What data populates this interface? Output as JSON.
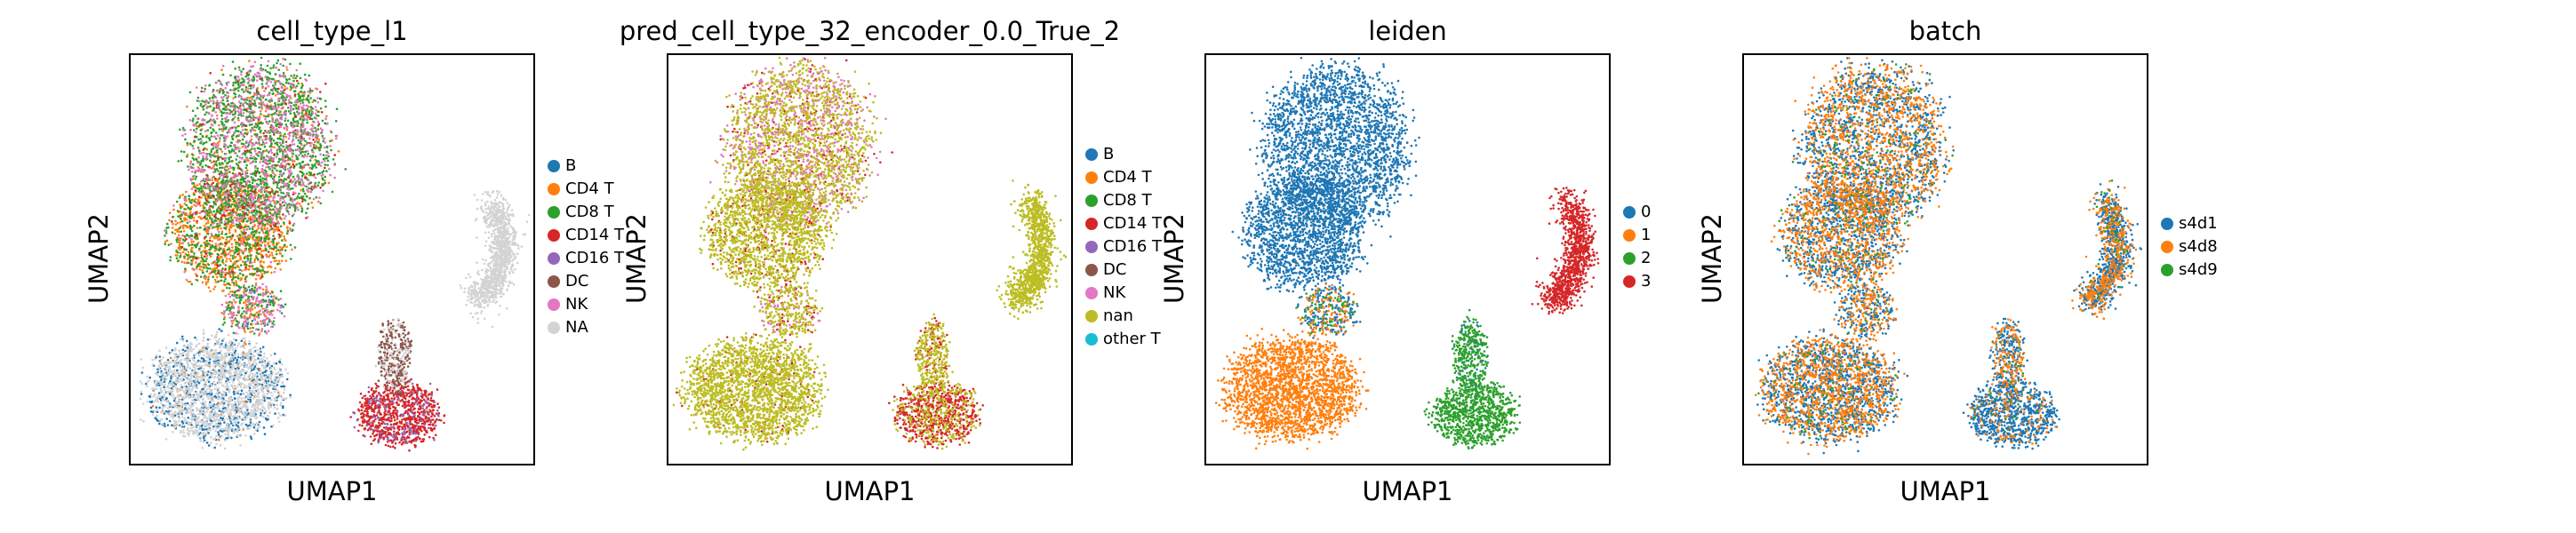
{
  "chart_data": [
    {
      "type": "scatter",
      "title": "cell_type_l1",
      "xlabel": "UMAP1",
      "ylabel": "UMAP2",
      "legend_position": "right",
      "categories": [
        "B",
        "CD4 T",
        "CD8 T",
        "CD14 T",
        "CD16 T",
        "DC",
        "NK",
        "NA"
      ],
      "colors": [
        "#1f77b4",
        "#ff7f0e",
        "#2ca02c",
        "#d62728",
        "#9467bd",
        "#8c564b",
        "#e377c2",
        "#d3d3d3"
      ],
      "clusters": [
        {
          "region": "top_upper",
          "mix": {
            "CD8 T": 0.55,
            "CD4 T": 0.1,
            "NK": 0.3,
            "CD14 T": 0.05
          }
        },
        {
          "region": "top_lower",
          "mix": {
            "CD4 T": 0.55,
            "CD8 T": 0.35,
            "CD14 T": 0.05,
            "NK": 0.05
          }
        },
        {
          "region": "bridge",
          "mix": {
            "CD8 T": 0.4,
            "NK": 0.3,
            "CD4 T": 0.2,
            "B": 0.1
          }
        },
        {
          "region": "right_arc",
          "mix": {
            "NA": 1.0
          }
        },
        {
          "region": "bottom_left",
          "mix": {
            "NA": 0.65,
            "B": 0.33,
            "CD4 T": 0.02
          }
        },
        {
          "region": "bottom_right",
          "mix": {
            "CD14 T": 0.85,
            "CD16 T": 0.15
          }
        },
        {
          "region": "br_stem",
          "mix": {
            "DC": 0.7,
            "NA": 0.3
          }
        }
      ]
    },
    {
      "type": "scatter",
      "title": "pred_cell_type_32_encoder_0.0_True_2",
      "xlabel": "UMAP1",
      "ylabel": "UMAP2",
      "legend_position": "right",
      "categories": [
        "B",
        "CD4 T",
        "CD8 T",
        "CD14 T",
        "CD16 T",
        "DC",
        "NK",
        "nan",
        "other T"
      ],
      "colors": [
        "#1f77b4",
        "#ff7f0e",
        "#2ca02c",
        "#d62728",
        "#9467bd",
        "#8c564b",
        "#e377c2",
        "#bcbd22",
        "#17becf"
      ],
      "clusters": [
        {
          "region": "top_upper",
          "mix": {
            "nan": 0.6,
            "NK": 0.3,
            "CD14 T": 0.1
          }
        },
        {
          "region": "top_lower",
          "mix": {
            "nan": 0.88,
            "CD14 T": 0.12
          }
        },
        {
          "region": "bridge",
          "mix": {
            "nan": 0.7,
            "NK": 0.15,
            "CD14 T": 0.15
          }
        },
        {
          "region": "right_arc",
          "mix": {
            "nan": 1.0
          }
        },
        {
          "region": "bottom_left",
          "mix": {
            "nan": 0.95,
            "CD14 T": 0.05
          }
        },
        {
          "region": "bottom_right",
          "mix": {
            "CD14 T": 0.65,
            "nan": 0.35
          }
        },
        {
          "region": "br_stem",
          "mix": {
            "nan": 0.8,
            "CD14 T": 0.2
          }
        }
      ]
    },
    {
      "type": "scatter",
      "title": "leiden",
      "xlabel": "UMAP1",
      "ylabel": "UMAP2",
      "legend_position": "right",
      "categories": [
        "0",
        "1",
        "2",
        "3"
      ],
      "colors": [
        "#1f77b4",
        "#ff7f0e",
        "#2ca02c",
        "#d62728"
      ],
      "clusters": [
        {
          "region": "top_upper",
          "mix": {
            "0": 1.0
          }
        },
        {
          "region": "top_lower",
          "mix": {
            "0": 1.0
          }
        },
        {
          "region": "bridge",
          "mix": {
            "0": 0.5,
            "1": 0.3,
            "2": 0.2
          }
        },
        {
          "region": "right_arc",
          "mix": {
            "3": 1.0
          }
        },
        {
          "region": "bottom_left",
          "mix": {
            "1": 1.0
          }
        },
        {
          "region": "bottom_right",
          "mix": {
            "2": 1.0
          }
        },
        {
          "region": "br_stem",
          "mix": {
            "2": 0.85,
            "0": 0.15
          }
        }
      ]
    },
    {
      "type": "scatter",
      "title": "batch",
      "xlabel": "UMAP1",
      "ylabel": "UMAP2",
      "legend_position": "right",
      "categories": [
        "s4d1",
        "s4d8",
        "s4d9"
      ],
      "colors": [
        "#1f77b4",
        "#ff7f0e",
        "#2ca02c"
      ],
      "clusters": [
        {
          "region": "top_upper",
          "mix": {
            "s4d1": 0.48,
            "s4d8": 0.48,
            "s4d9": 0.04
          }
        },
        {
          "region": "top_lower",
          "mix": {
            "s4d1": 0.48,
            "s4d8": 0.48,
            "s4d9": 0.04
          }
        },
        {
          "region": "bridge",
          "mix": {
            "s4d1": 0.5,
            "s4d8": 0.45,
            "s4d9": 0.05
          }
        },
        {
          "region": "right_arc",
          "mix": {
            "s4d1": 0.55,
            "s4d8": 0.43,
            "s4d9": 0.02
          }
        },
        {
          "region": "bottom_left",
          "mix": {
            "s4d1": 0.5,
            "s4d8": 0.47,
            "s4d9": 0.03
          }
        },
        {
          "region": "bottom_right",
          "mix": {
            "s4d1": 0.82,
            "s4d8": 0.16,
            "s4d9": 0.02
          }
        },
        {
          "region": "br_stem",
          "mix": {
            "s4d1": 0.55,
            "s4d8": 0.43,
            "s4d9": 0.02
          }
        }
      ]
    }
  ]
}
